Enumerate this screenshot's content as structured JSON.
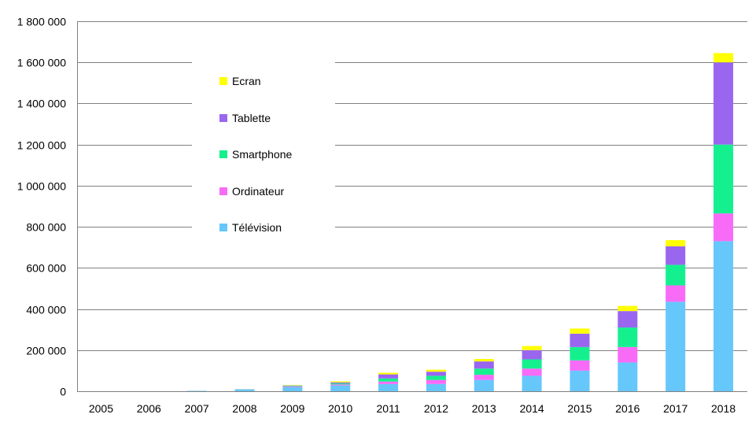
{
  "chart_data": {
    "type": "bar",
    "stacked": true,
    "categories": [
      "2005",
      "2006",
      "2007",
      "2008",
      "2009",
      "2010",
      "2011",
      "2012",
      "2013",
      "2014",
      "2015",
      "2016",
      "2017",
      "2018"
    ],
    "series": [
      {
        "name": "Télévision",
        "color": "#66C7FB",
        "values": [
          0,
          0,
          2000,
          8000,
          20000,
          28000,
          35000,
          35000,
          55000,
          75000,
          100000,
          140000,
          435000,
          730000
        ]
      },
      {
        "name": "Ordinateur",
        "color": "#F76BF7",
        "values": [
          0,
          0,
          0,
          1000,
          3000,
          5000,
          12000,
          20000,
          25000,
          35000,
          50000,
          75000,
          80000,
          135000
        ]
      },
      {
        "name": "Smartphone",
        "color": "#15F08F",
        "values": [
          0,
          0,
          0,
          1000,
          3000,
          5000,
          15000,
          20000,
          30000,
          45000,
          65000,
          95000,
          100000,
          335000
        ]
      },
      {
        "name": "Tablette",
        "color": "#9966F0",
        "values": [
          0,
          0,
          0,
          0,
          2000,
          5000,
          20000,
          20000,
          35000,
          45000,
          65000,
          80000,
          90000,
          400000
        ]
      },
      {
        "name": "Ecran",
        "color": "#FFFF00",
        "values": [
          0,
          0,
          0,
          0,
          2000,
          5000,
          8000,
          10000,
          12000,
          20000,
          25000,
          25000,
          30000,
          45000
        ]
      }
    ],
    "legend_order": [
      "Ecran",
      "Tablette",
      "Smartphone",
      "Ordinateur",
      "Télévision"
    ],
    "ylim": [
      0,
      1800000
    ],
    "yticks": [
      0,
      200000,
      400000,
      600000,
      800000,
      1000000,
      1200000,
      1400000,
      1600000,
      1800000
    ],
    "ytick_labels": [
      "0",
      "200 000",
      "400 000",
      "600 000",
      "800 000",
      "1 000 000",
      "1 200 000",
      "1 400 000",
      "1 600 000",
      "1 800 000"
    ],
    "grid": true,
    "legend_position": "upper-left inside plot"
  }
}
